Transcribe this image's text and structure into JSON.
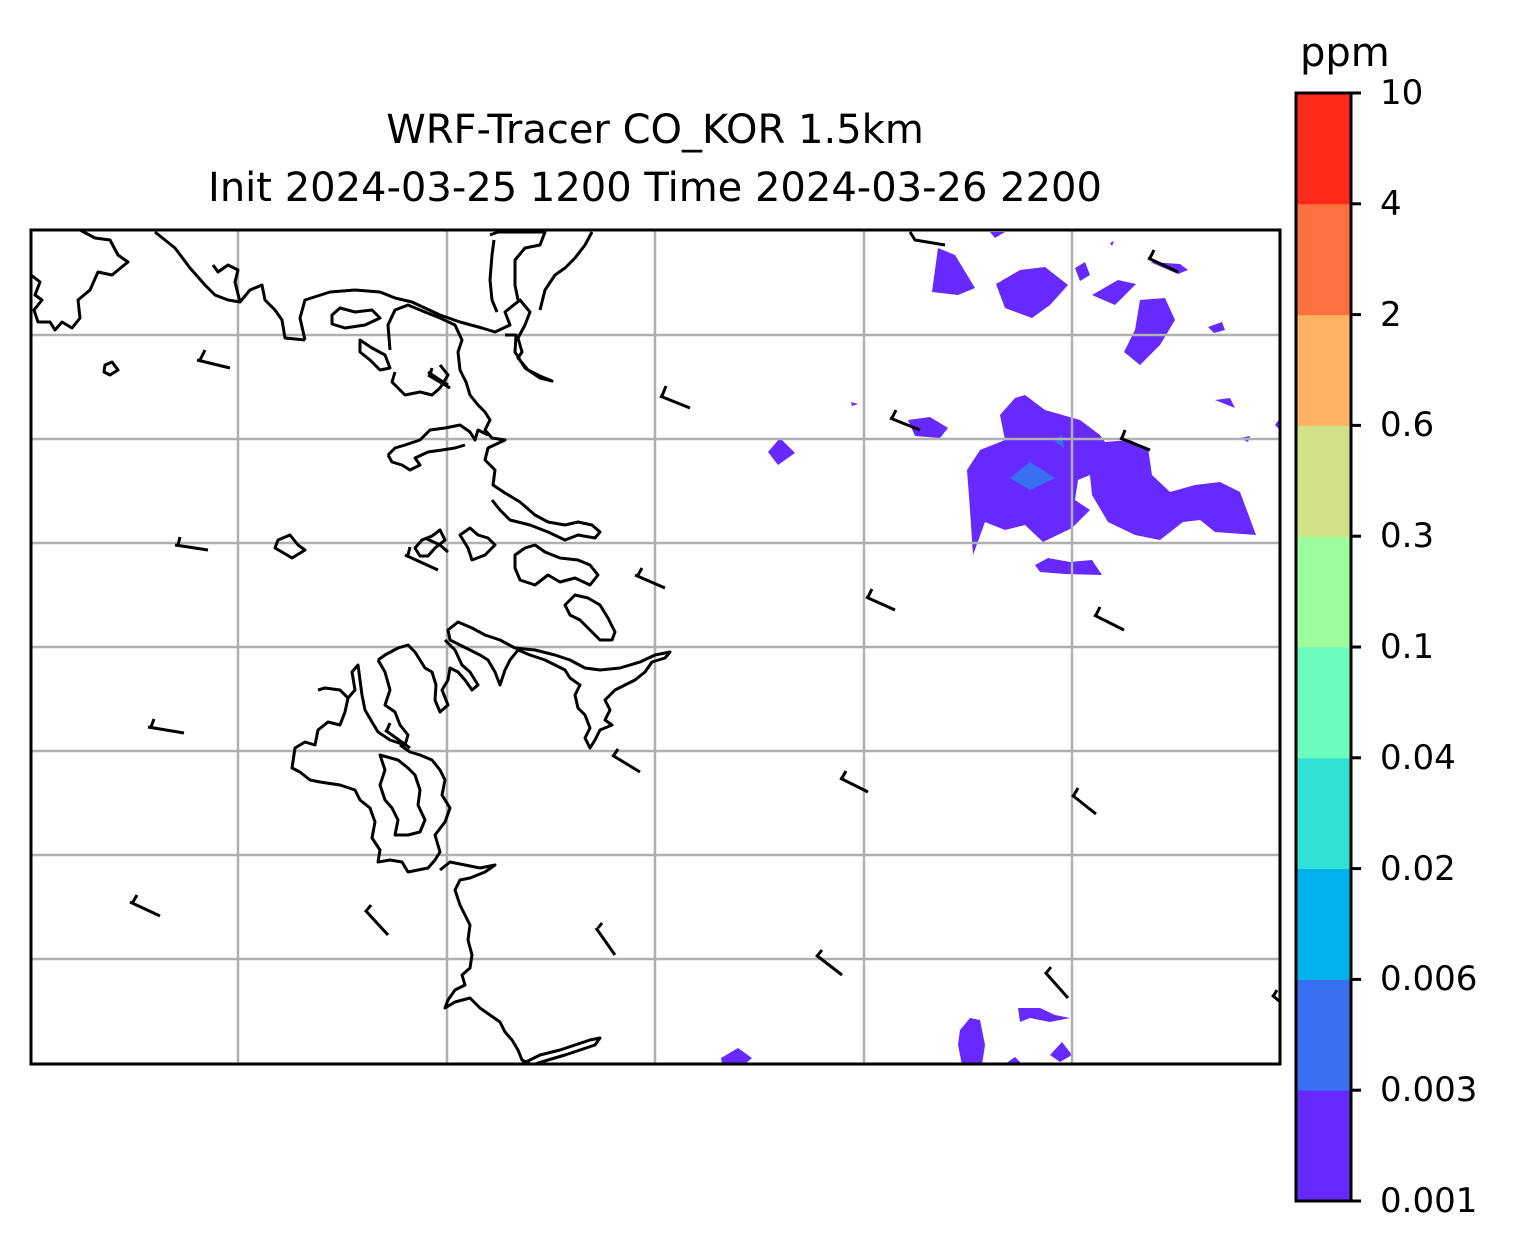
{
  "title": {
    "line1": "WRF-Tracer CO_KOR 1.5km",
    "line2": "Init 2024-03-25 1200 Time 2024-03-26 2200"
  },
  "colorbar": {
    "unit": "ppm",
    "levels": [
      "0.001",
      "0.003",
      "0.006",
      "0.02",
      "0.04",
      "0.1",
      "0.3",
      "0.6",
      "2",
      "4",
      "10"
    ],
    "colors": [
      "#6629ff",
      "#3771f2",
      "#00b2ec",
      "#30e1d6",
      "#6afdbc",
      "#9dfd9d",
      "#d0e186",
      "#ffb260",
      "#ff7040",
      "#ff2a1a"
    ]
  },
  "map": {
    "coastline_color": "#000000",
    "gridline_color": "#b0b0b0",
    "tracer_fill_color": "#6629ff",
    "tracer_peak_color": "#3771f2"
  }
}
